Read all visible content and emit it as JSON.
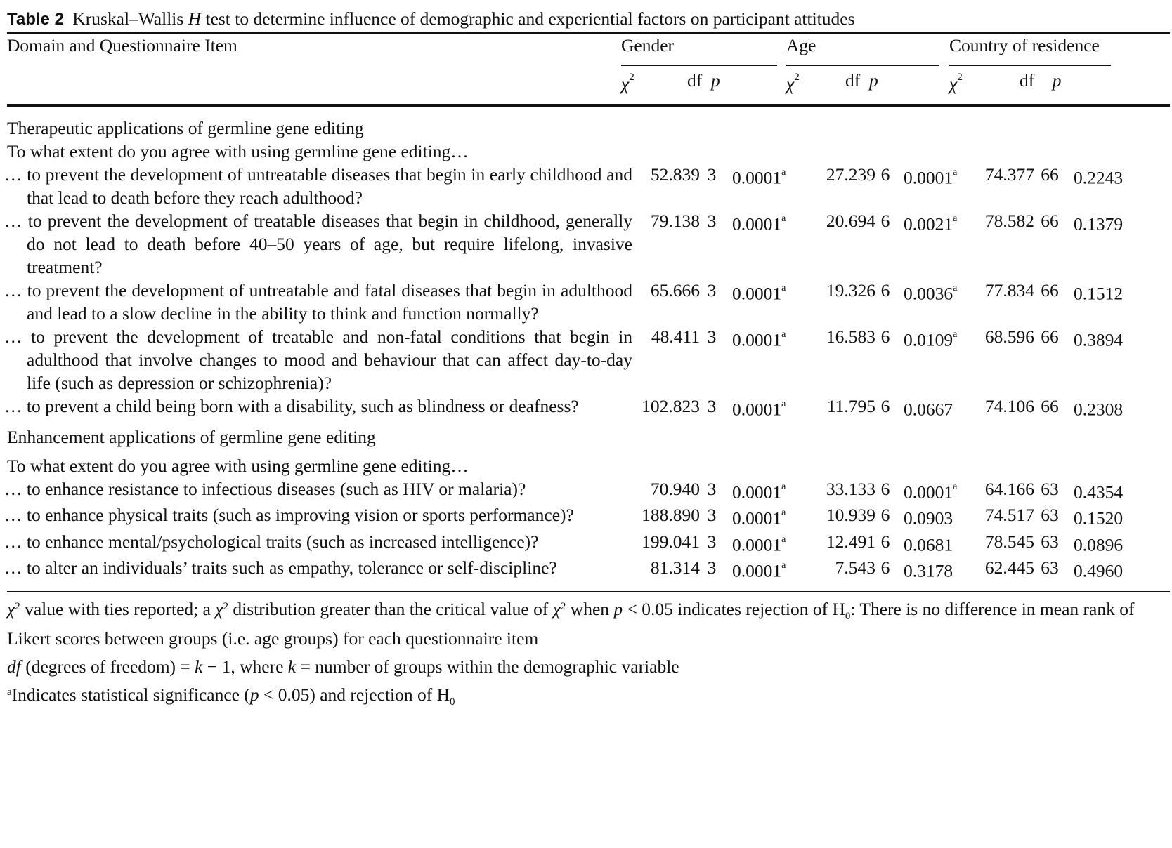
{
  "table": {
    "label": "Table 2",
    "caption_pre": "Kruskal–Wallis",
    "caption_h": "H",
    "caption_post": "test to determine influence of demographic and experiential factors on participant attitudes",
    "header": {
      "first_col": "Domain and Questionnaire Item",
      "groups": [
        "Gender",
        "Age",
        "Country of residence"
      ],
      "sub_chi": "χ",
      "sub_chi_sup": "2",
      "sub_df": "df",
      "sub_p": "p"
    },
    "sections": [
      {
        "domain": "Therapeutic applications of germline gene editing",
        "prompt": "To what extent do you agree with using germline gene editing…",
        "rows": [
          {
            "item": "… to prevent the development of untreatable diseases that begin in early childhood and that lead to death before they reach adulthood?",
            "g_chi": "52.839",
            "g_df": "3",
            "g_p": "0.0001",
            "g_sig": "a",
            "a_chi": "27.239",
            "a_df": "6",
            "a_p": "0.0001",
            "a_sig": "a",
            "c_chi": "74.377",
            "c_df": "66",
            "c_p": "0.2243",
            "c_sig": ""
          },
          {
            "item": "… to prevent the development of treatable diseases that begin in childhood, generally do not lead to death before 40–50 years of age, but require lifelong, invasive treatment?",
            "g_chi": "79.138",
            "g_df": "3",
            "g_p": "0.0001",
            "g_sig": "a",
            "a_chi": "20.694",
            "a_df": "6",
            "a_p": "0.0021",
            "a_sig": "a",
            "c_chi": "78.582",
            "c_df": "66",
            "c_p": "0.1379",
            "c_sig": ""
          },
          {
            "item": "… to prevent the development of untreatable and fatal diseases that begin in adulthood and lead to a slow decline in the ability to think and function normally?",
            "g_chi": "65.666",
            "g_df": "3",
            "g_p": "0.0001",
            "g_sig": "a",
            "a_chi": "19.326",
            "a_df": "6",
            "a_p": "0.0036",
            "a_sig": "a",
            "c_chi": "77.834",
            "c_df": "66",
            "c_p": "0.1512",
            "c_sig": ""
          },
          {
            "item": "… to prevent the development of treatable and non-fatal conditions that begin in adulthood that involve changes to mood and behaviour that can affect day-to-day life (such as depression or schizophrenia)?",
            "g_chi": "48.411",
            "g_df": "3",
            "g_p": "0.0001",
            "g_sig": "a",
            "a_chi": "16.583",
            "a_df": "6",
            "a_p": "0.0109",
            "a_sig": "a",
            "c_chi": "68.596",
            "c_df": "66",
            "c_p": "0.3894",
            "c_sig": ""
          },
          {
            "item": "… to prevent a child being born with a disability, such as blindness or deafness?",
            "g_chi": "102.823",
            "g_df": "3",
            "g_p": "0.0001",
            "g_sig": "a",
            "a_chi": "11.795",
            "a_df": "6",
            "a_p": "0.0667",
            "a_sig": "",
            "c_chi": "74.106",
            "c_df": "66",
            "c_p": "0.2308",
            "c_sig": ""
          }
        ]
      },
      {
        "domain": "Enhancement applications of germline gene editing",
        "prompt": "To what extent do you agree with using germline gene editing…",
        "rows": [
          {
            "item": "… to enhance resistance to infectious diseases (such as HIV or malaria)?",
            "g_chi": "70.940",
            "g_df": "3",
            "g_p": "0.0001",
            "g_sig": "a",
            "a_chi": "33.133",
            "a_df": "6",
            "a_p": "0.0001",
            "a_sig": "a",
            "c_chi": "64.166",
            "c_df": "63",
            "c_p": "0.4354",
            "c_sig": ""
          },
          {
            "item": "… to enhance physical traits (such as improving vision or sports performance)?",
            "g_chi": "188.890",
            "g_df": "3",
            "g_p": "0.0001",
            "g_sig": "a",
            "a_chi": "10.939",
            "a_df": "6",
            "a_p": "0.0903",
            "a_sig": "",
            "c_chi": "74.517",
            "c_df": "63",
            "c_p": "0.1520",
            "c_sig": ""
          },
          {
            "item": "… to enhance mental/psychological traits (such as increased intelligence)?",
            "g_chi": "199.041",
            "g_df": "3",
            "g_p": "0.0001",
            "g_sig": "a",
            "a_chi": "12.491",
            "a_df": "6",
            "a_p": "0.0681",
            "a_sig": "",
            "c_chi": "78.545",
            "c_df": "63",
            "c_p": "0.0896",
            "c_sig": ""
          },
          {
            "item": "… to alter an individuals’ traits such as empathy, tolerance or self-discipline?",
            "g_chi": "81.314",
            "g_df": "3",
            "g_p": "0.0001",
            "g_sig": "a",
            "a_chi": "7.543",
            "a_df": "6",
            "a_p": "0.3178",
            "a_sig": "",
            "c_chi": "62.445",
            "c_df": "63",
            "c_p": "0.4960",
            "c_sig": ""
          }
        ]
      }
    ],
    "footnotes": {
      "fn1_a": "χ",
      "fn1_b": "2",
      "fn1_c": " value with ties reported; a ",
      "fn1_d": "χ",
      "fn1_e": "2",
      "fn1_f": " distribution greater than the critical value of ",
      "fn1_g": "χ",
      "fn1_h": "2",
      "fn1_i": " when ",
      "fn1_j": "p",
      "fn1_k": " < 0.05 indicates rejection of H",
      "fn1_l": "0",
      "fn1_m": ": There is no difference in mean rank of Likert scores between groups (i.e. age groups) for each questionnaire item",
      "fn2_a": "df",
      "fn2_b": " (degrees of freedom) = ",
      "fn2_c": "k",
      "fn2_d": " − 1, where ",
      "fn2_e": "k",
      "fn2_f": " = number of groups within the demographic variable",
      "fn3_a": "a",
      "fn3_b": "Indicates statistical significance (",
      "fn3_c": "p",
      "fn3_d": " < 0.05) and rejection of H",
      "fn3_e": "0"
    }
  }
}
